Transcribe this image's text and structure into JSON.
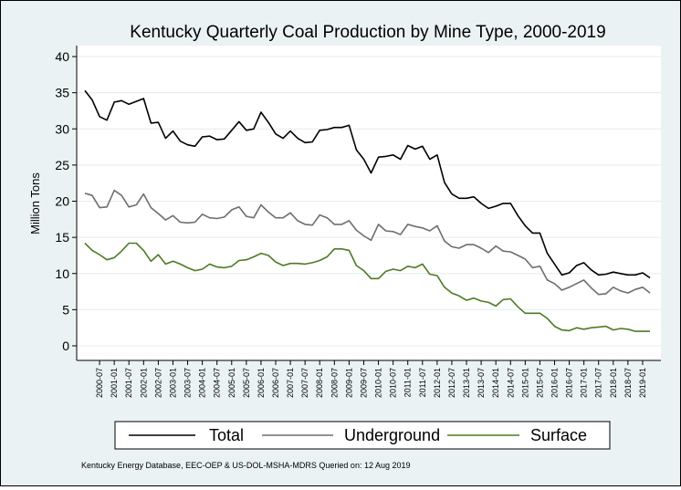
{
  "chart_data": {
    "type": "line",
    "title": "Kentucky Quarterly Coal Production by Mine Type, 2000-2019",
    "ylabel": "Million Tons",
    "xlabel": "",
    "ylim": [
      0,
      40
    ],
    "yticks": [
      0,
      5,
      10,
      15,
      20,
      25,
      30,
      35,
      40
    ],
    "grid": true,
    "legend_position": "bottom",
    "note": "Kentucky Energy Database, EEC-OEP & US-DOL-MSHA-MDRS Queried on: 12 Aug 2019",
    "x_tick_labels": [
      "2000-07",
      "2001-01",
      "2001-07",
      "2002-01",
      "2002-07",
      "2003-01",
      "2003-07",
      "2004-01",
      "2004-07",
      "2005-01",
      "2005-07",
      "2006-01",
      "2006-07",
      "2007-01",
      "2007-07",
      "2008-01",
      "2008-07",
      "2009-01",
      "2009-07",
      "2010-01",
      "2010-07",
      "2011-01",
      "2011-07",
      "2012-01",
      "2012-07",
      "2013-01",
      "2013-07",
      "2014-01",
      "2014-07",
      "2015-01",
      "2015-07",
      "2016-01",
      "2016-07",
      "2017-01",
      "2017-07",
      "2018-01",
      "2018-07",
      "2019-01"
    ],
    "x": [
      "2000-01",
      "2000-04",
      "2000-07",
      "2000-10",
      "2001-01",
      "2001-04",
      "2001-07",
      "2001-10",
      "2002-01",
      "2002-04",
      "2002-07",
      "2002-10",
      "2003-01",
      "2003-04",
      "2003-07",
      "2003-10",
      "2004-01",
      "2004-04",
      "2004-07",
      "2004-10",
      "2005-01",
      "2005-04",
      "2005-07",
      "2005-10",
      "2006-01",
      "2006-04",
      "2006-07",
      "2006-10",
      "2007-01",
      "2007-04",
      "2007-07",
      "2007-10",
      "2008-01",
      "2008-04",
      "2008-07",
      "2008-10",
      "2009-01",
      "2009-04",
      "2009-07",
      "2009-10",
      "2010-01",
      "2010-04",
      "2010-07",
      "2010-10",
      "2011-01",
      "2011-04",
      "2011-07",
      "2011-10",
      "2012-01",
      "2012-04",
      "2012-07",
      "2012-10",
      "2013-01",
      "2013-04",
      "2013-07",
      "2013-10",
      "2014-01",
      "2014-04",
      "2014-07",
      "2014-10",
      "2015-01",
      "2015-04",
      "2015-07",
      "2015-10",
      "2016-01",
      "2016-04",
      "2016-07",
      "2016-10",
      "2017-01",
      "2017-04",
      "2017-07",
      "2017-10",
      "2018-01",
      "2018-04",
      "2018-07",
      "2018-10",
      "2019-01",
      "2019-04"
    ],
    "series": [
      {
        "name": "Total",
        "color": "#000000",
        "values": [
          35.3,
          34.0,
          31.7,
          31.2,
          33.7,
          33.9,
          33.4,
          33.8,
          34.2,
          30.8,
          30.9,
          28.7,
          29.7,
          28.3,
          27.8,
          27.6,
          28.9,
          29.0,
          28.5,
          28.6,
          29.8,
          31.0,
          29.8,
          30.0,
          32.3,
          30.9,
          29.3,
          28.7,
          29.7,
          28.7,
          28.1,
          28.2,
          29.8,
          29.9,
          30.2,
          30.2,
          30.5,
          27.1,
          25.8,
          23.9,
          26.1,
          26.2,
          26.4,
          25.8,
          27.7,
          27.2,
          27.6,
          25.8,
          26.4,
          22.6,
          21.0,
          20.4,
          20.4,
          20.6,
          19.7,
          19.0,
          19.3,
          19.7,
          19.7,
          18.0,
          16.6,
          15.6,
          15.6,
          12.8,
          11.3,
          9.8,
          10.1,
          11.1,
          11.5,
          10.5,
          9.8,
          9.9,
          10.2,
          10.0,
          9.8,
          9.8,
          10.1,
          9.4
        ]
      },
      {
        "name": "Underground",
        "color": "#6e6e6e",
        "values": [
          21.1,
          20.8,
          19.1,
          19.2,
          21.5,
          20.8,
          19.2,
          19.5,
          21.0,
          19.1,
          18.3,
          17.4,
          18.0,
          17.1,
          17.0,
          17.1,
          18.2,
          17.7,
          17.6,
          17.8,
          18.8,
          19.2,
          17.9,
          17.7,
          19.5,
          18.5,
          17.7,
          17.7,
          18.4,
          17.3,
          16.8,
          16.7,
          18.1,
          17.7,
          16.8,
          16.8,
          17.3,
          16.0,
          15.2,
          14.6,
          16.8,
          15.9,
          15.8,
          15.4,
          16.8,
          16.5,
          16.3,
          15.9,
          16.6,
          14.5,
          13.7,
          13.5,
          14.0,
          14.0,
          13.5,
          12.9,
          13.8,
          13.1,
          13.0,
          12.5,
          12.0,
          10.8,
          11.0,
          9.1,
          8.6,
          7.7,
          8.1,
          8.6,
          9.1,
          8.0,
          7.1,
          7.2,
          8.1,
          7.6,
          7.3,
          7.8,
          8.1,
          7.3
        ]
      },
      {
        "name": "Surface",
        "color": "#4e7a24",
        "values": [
          14.2,
          13.2,
          12.6,
          11.9,
          12.2,
          13.1,
          14.2,
          14.2,
          13.2,
          11.7,
          12.6,
          11.3,
          11.7,
          11.3,
          10.8,
          10.4,
          10.6,
          11.3,
          10.9,
          10.8,
          11.0,
          11.8,
          11.9,
          12.3,
          12.8,
          12.5,
          11.6,
          11.1,
          11.4,
          11.4,
          11.3,
          11.5,
          11.8,
          12.3,
          13.4,
          13.4,
          13.2,
          11.1,
          10.4,
          9.3,
          9.3,
          10.3,
          10.6,
          10.4,
          11.0,
          10.8,
          11.3,
          9.9,
          9.7,
          8.1,
          7.3,
          6.9,
          6.3,
          6.6,
          6.2,
          6.0,
          5.5,
          6.4,
          6.5,
          5.4,
          4.5,
          4.5,
          4.5,
          3.8,
          2.7,
          2.2,
          2.1,
          2.5,
          2.3,
          2.5,
          2.6,
          2.7,
          2.2,
          2.4,
          2.3,
          2.0,
          2.0,
          2.0
        ]
      }
    ]
  }
}
